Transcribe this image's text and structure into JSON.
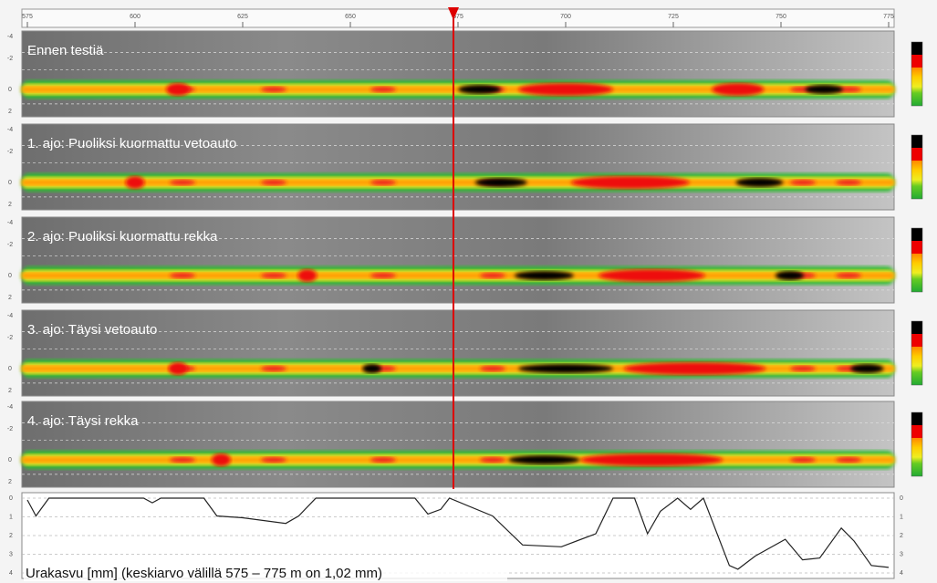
{
  "axis": {
    "lim": [
      575,
      775
    ],
    "ticks": [
      575,
      600,
      625,
      650,
      675,
      700,
      725,
      750,
      775
    ]
  },
  "panels": [
    {
      "label": "Ennen testiä"
    },
    {
      "label": "1. ajo: Puoliksi kuormattu vetoauto"
    },
    {
      "label": "2. ajo: Puoliksi kuormattu rekka"
    },
    {
      "label": "3. ajo: Täysi vetoauto"
    },
    {
      "label": "4. ajo: Täysi rekka"
    }
  ],
  "panel_yticks": [
    "-4",
    "-2",
    "0",
    "2"
  ],
  "profile": {
    "caption": "Urakasvu [mm] (keskiarvo välillä 575 – 775 m on 1,02 mm)",
    "ylim": [
      0,
      4
    ],
    "yticks": [
      0,
      1,
      2,
      3,
      4
    ],
    "x": [
      575,
      577,
      580,
      602,
      604,
      606,
      616,
      619,
      625,
      635,
      638,
      642,
      665,
      668,
      671,
      673,
      683,
      690,
      699,
      707,
      711,
      716,
      719,
      722,
      726,
      729,
      732,
      738,
      740,
      744,
      751,
      755,
      759,
      764,
      767,
      771,
      775
    ],
    "values": [
      0.1,
      0.95,
      0,
      0,
      0.25,
      0,
      0,
      0.95,
      1.05,
      1.35,
      0.95,
      0,
      0,
      0.85,
      0.6,
      0,
      0.95,
      2.5,
      2.6,
      1.9,
      0,
      0,
      1.9,
      0.7,
      0,
      0.6,
      0,
      3.6,
      3.8,
      3.1,
      2.2,
      3.3,
      3.2,
      1.6,
      2.3,
      3.6,
      3.7
    ]
  }
}
